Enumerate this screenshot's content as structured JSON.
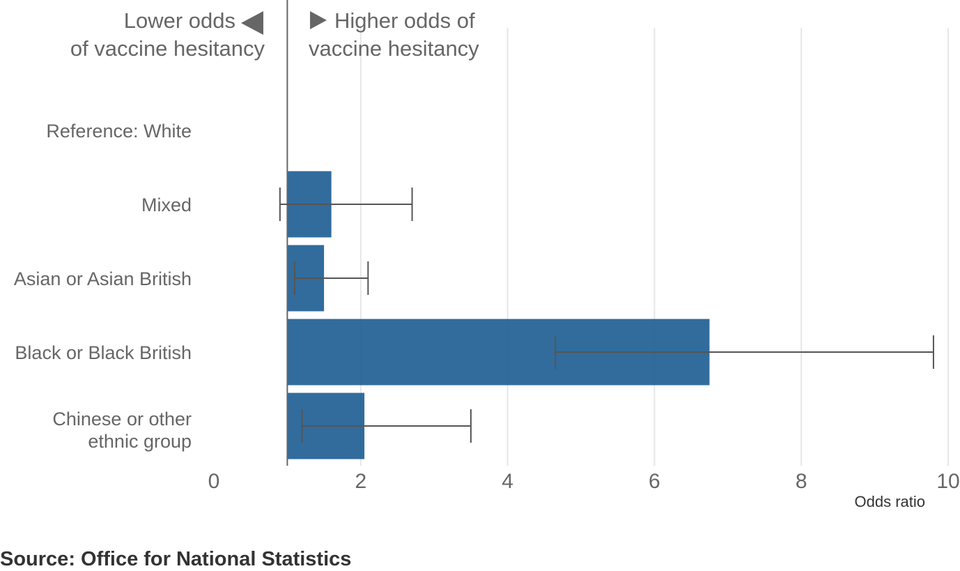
{
  "chart_data": {
    "type": "bar",
    "orientation": "horizontal",
    "categories": [
      "Reference: White",
      "Mixed",
      "Asian or Asian British",
      "Black or Black British",
      "Chinese or other ethnic group"
    ],
    "series": [
      {
        "values": [
          null,
          1.6,
          1.5,
          6.75,
          2.05
        ],
        "ci_lower": [
          null,
          0.9,
          1.1,
          4.65,
          1.2
        ],
        "ci_upper": [
          null,
          2.7,
          2.1,
          9.8,
          3.5
        ]
      }
    ],
    "reference_value": 1,
    "xlim": [
      0,
      10
    ],
    "xticks": [
      "0",
      "2",
      "4",
      "6",
      "8",
      "10"
    ],
    "xlabel": "Odds ratio",
    "grid": "vertical",
    "bar_color": "#206095",
    "annotations": {
      "lower": [
        "Lower odds",
        "of vaccine hesitancy"
      ],
      "higher": [
        "Higher odds of",
        "vaccine hesitancy"
      ]
    }
  },
  "source": "Source: Office for National Statistics"
}
